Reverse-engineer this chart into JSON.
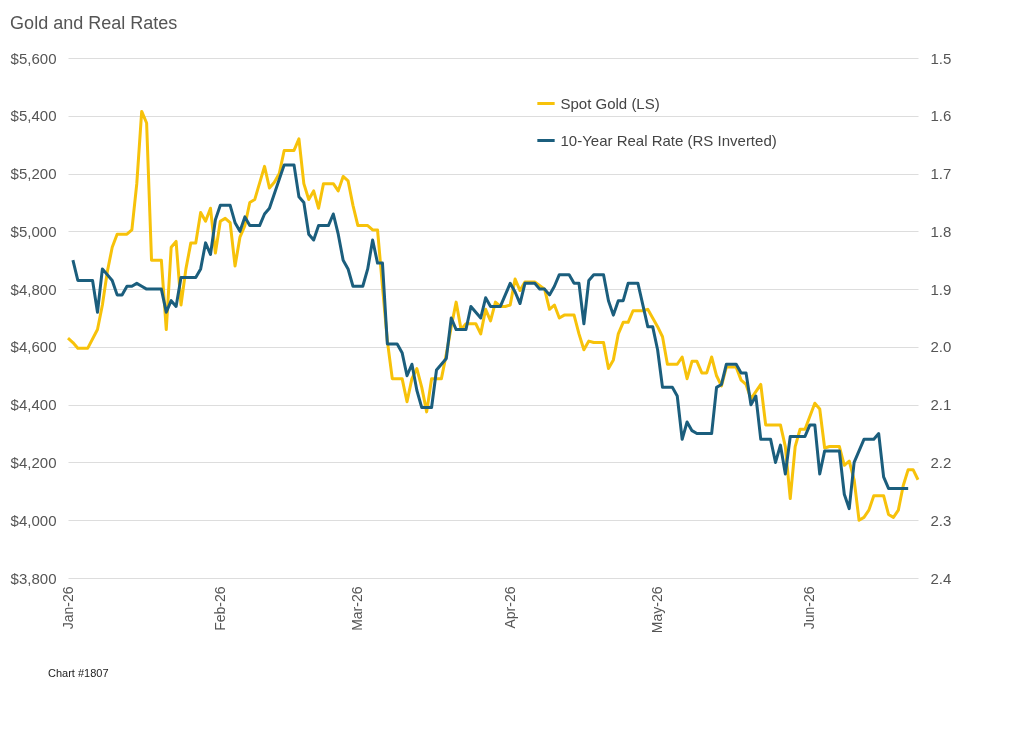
{
  "chart_data": {
    "type": "line",
    "title": "Gold and Real Rates",
    "annotations": [
      "Chart #1807"
    ],
    "xlim": [
      "2026-01-01",
      "2026-06-23"
    ],
    "xticks": [
      {
        "value": "2026-01-01",
        "label": "Jan-26"
      },
      {
        "value": "2026-02-01",
        "label": "Feb-26"
      },
      {
        "value": "2026-03-01",
        "label": "Mar-26"
      },
      {
        "value": "2026-04-01",
        "label": "Apr-26"
      },
      {
        "value": "2026-05-01",
        "label": "May-26"
      },
      {
        "value": "2026-06-01",
        "label": "Jun-26"
      }
    ],
    "ylim": [
      3800,
      5600
    ],
    "yticks": [
      {
        "value": 3800,
        "label": "$3,800"
      },
      {
        "value": 4000,
        "label": "$4,000"
      },
      {
        "value": 4200,
        "label": "$4,200"
      },
      {
        "value": 4400,
        "label": "$4,400"
      },
      {
        "value": 4600,
        "label": "$4,600"
      },
      {
        "value": 4800,
        "label": "$4,800"
      },
      {
        "value": 5000,
        "label": "$5,000"
      },
      {
        "value": 5200,
        "label": "$5,200"
      },
      {
        "value": 5400,
        "label": "$5,400"
      },
      {
        "value": 5600,
        "label": "$5,600"
      }
    ],
    "y2lim": [
      2.4,
      1.5
    ],
    "y2ticks": [
      1.5,
      1.6,
      1.7,
      1.8,
      1.9,
      {
        "value": 2.0,
        "label": "2.0"
      },
      2.1,
      2.2,
      2.3,
      2.4
    ],
    "grid": "y",
    "legend": "top right",
    "marker": "none",
    "line_style": "solid",
    "series": [
      {
        "name": "Spot Gold (LS)",
        "color": "#f7c20a",
        "x": [
          "2026-01-01",
          "2026-01-02",
          "2026-01-03",
          "2026-01-05",
          "2026-01-07",
          "2026-01-08",
          "2026-01-09",
          "2026-01-10",
          "2026-01-11",
          "2026-01-13",
          "2026-01-14",
          "2026-01-15",
          "2026-01-16",
          "2026-01-17",
          "2026-01-18",
          "2026-01-20",
          "2026-01-21",
          "2026-01-22",
          "2026-01-23",
          "2026-01-24",
          "2026-01-25",
          "2026-01-26",
          "2026-01-27",
          "2026-01-28",
          "2026-01-29",
          "2026-01-30",
          "2026-01-31",
          "2026-02-01",
          "2026-02-02",
          "2026-02-03",
          "2026-02-04",
          "2026-02-05",
          "2026-02-06",
          "2026-02-07",
          "2026-02-08",
          "2026-02-10",
          "2026-02-11",
          "2026-02-12",
          "2026-02-13",
          "2026-02-14",
          "2026-02-16",
          "2026-02-17",
          "2026-02-18",
          "2026-02-19",
          "2026-02-20",
          "2026-02-21",
          "2026-02-22",
          "2026-02-24",
          "2026-02-25",
          "2026-02-26",
          "2026-02-27",
          "2026-02-28",
          "2026-03-01",
          "2026-03-03",
          "2026-03-04",
          "2026-03-05",
          "2026-03-06",
          "2026-03-07",
          "2026-03-08",
          "2026-03-10",
          "2026-03-11",
          "2026-03-12",
          "2026-03-13",
          "2026-03-14",
          "2026-03-15",
          "2026-03-16",
          "2026-03-18",
          "2026-03-19",
          "2026-03-20",
          "2026-03-21",
          "2026-03-22",
          "2026-03-23",
          "2026-03-25",
          "2026-03-26",
          "2026-03-27",
          "2026-03-28",
          "2026-03-29",
          "2026-03-30",
          "2026-03-31",
          "2026-04-01",
          "2026-04-02",
          "2026-04-03",
          "2026-04-04",
          "2026-04-06",
          "2026-04-08",
          "2026-04-09",
          "2026-04-10",
          "2026-04-11",
          "2026-04-12",
          "2026-04-13",
          "2026-04-14",
          "2026-04-15",
          "2026-04-16",
          "2026-04-17",
          "2026-04-18",
          "2026-04-20",
          "2026-04-21",
          "2026-04-22",
          "2026-04-23",
          "2026-04-24",
          "2026-04-25",
          "2026-04-26",
          "2026-04-28",
          "2026-04-29",
          "2026-04-30",
          "2026-05-01",
          "2026-05-02",
          "2026-05-03",
          "2026-05-05",
          "2026-05-06",
          "2026-05-07",
          "2026-05-08",
          "2026-05-09",
          "2026-05-10",
          "2026-05-11",
          "2026-05-12",
          "2026-05-13",
          "2026-05-14",
          "2026-05-15",
          "2026-05-17",
          "2026-05-18",
          "2026-05-19",
          "2026-05-20",
          "2026-05-22",
          "2026-05-23",
          "2026-05-26",
          "2026-05-27",
          "2026-05-28",
          "2026-05-29",
          "2026-05-30",
          "2026-05-31",
          "2026-06-02",
          "2026-06-03",
          "2026-06-04",
          "2026-06-05",
          "2026-06-07",
          "2026-06-08",
          "2026-06-09",
          "2026-06-10",
          "2026-06-11",
          "2026-06-12",
          "2026-06-13",
          "2026-06-14",
          "2026-06-16",
          "2026-06-17",
          "2026-06-18",
          "2026-06-19",
          "2026-06-20",
          "2026-06-21",
          "2026-06-22",
          "2026-06-23"
        ],
        "values": [
          4630,
          4615,
          4595,
          4595,
          4660,
          4745,
          4860,
          4945,
          4990,
          4990,
          5005,
          5165,
          5415,
          5375,
          4900,
          4900,
          4660,
          4945,
          4965,
          4745,
          4870,
          4960,
          4960,
          5065,
          5035,
          5080,
          4925,
          5035,
          5045,
          5030,
          4880,
          4980,
          5020,
          5100,
          5110,
          5225,
          5150,
          5170,
          5200,
          5280,
          5280,
          5320,
          5165,
          5110,
          5140,
          5080,
          5165,
          5165,
          5140,
          5190,
          5175,
          5090,
          5020,
          5020,
          5005,
          5005,
          4810,
          4620,
          4490,
          4490,
          4410,
          4490,
          4525,
          4460,
          4375,
          4490,
          4490,
          4575,
          4670,
          4755,
          4660,
          4680,
          4680,
          4645,
          4730,
          4690,
          4755,
          4740,
          4740,
          4745,
          4835,
          4795,
          4825,
          4825,
          4800,
          4730,
          4745,
          4700,
          4710,
          4710,
          4710,
          4645,
          4590,
          4620,
          4615,
          4615,
          4525,
          4555,
          4645,
          4685,
          4685,
          4725,
          4725,
          4730,
          4700,
          4670,
          4635,
          4540,
          4540,
          4565,
          4490,
          4550,
          4550,
          4510,
          4510,
          4565,
          4500,
          4465,
          4530,
          4530,
          4485,
          4470,
          4420,
          4470,
          4330,
          4330,
          4255,
          4075,
          4255,
          4315,
          4315,
          4405,
          4385,
          4250,
          4255,
          4255,
          4190,
          4205,
          4140,
          4000,
          4010,
          4035,
          4085,
          4085,
          4020,
          4010,
          4035,
          4120,
          4175,
          4175,
          4140
        ]
      },
      {
        "name": "10-Year Real Rate (RS Inverted)",
        "color": "#1b5e7d",
        "axis": "y2",
        "x": [
          "2026-01-02",
          "2026-01-03",
          "2026-01-06",
          "2026-01-07",
          "2026-01-08",
          "2026-01-10",
          "2026-01-11",
          "2026-01-12",
          "2026-01-13",
          "2026-01-14",
          "2026-01-15",
          "2026-01-16",
          "2026-01-17",
          "2026-01-20",
          "2026-01-21",
          "2026-01-22",
          "2026-01-23",
          "2026-01-24",
          "2026-01-25",
          "2026-01-27",
          "2026-01-28",
          "2026-01-29",
          "2026-01-30",
          "2026-01-31",
          "2026-02-01",
          "2026-02-03",
          "2026-02-04",
          "2026-02-05",
          "2026-02-06",
          "2026-02-07",
          "2026-02-09",
          "2026-02-10",
          "2026-02-11",
          "2026-02-12",
          "2026-02-14",
          "2026-02-16",
          "2026-02-17",
          "2026-02-18",
          "2026-02-19",
          "2026-02-20",
          "2026-02-21",
          "2026-02-23",
          "2026-02-24",
          "2026-02-25",
          "2026-02-26",
          "2026-02-27",
          "2026-02-28",
          "2026-03-02",
          "2026-03-03",
          "2026-03-04",
          "2026-03-05",
          "2026-03-06",
          "2026-03-07",
          "2026-03-09",
          "2026-03-10",
          "2026-03-11",
          "2026-03-12",
          "2026-03-13",
          "2026-03-14",
          "2026-03-16",
          "2026-03-17",
          "2026-03-19",
          "2026-03-20",
          "2026-03-21",
          "2026-03-23",
          "2026-03-24",
          "2026-03-26",
          "2026-03-27",
          "2026-03-28",
          "2026-03-30",
          "2026-04-01",
          "2026-04-02",
          "2026-04-03",
          "2026-04-04",
          "2026-04-06",
          "2026-04-07",
          "2026-04-08",
          "2026-04-09",
          "2026-04-10",
          "2026-04-11",
          "2026-04-13",
          "2026-04-14",
          "2026-04-15",
          "2026-04-16",
          "2026-04-17",
          "2026-04-18",
          "2026-04-20",
          "2026-04-21",
          "2026-04-22",
          "2026-04-23",
          "2026-04-24",
          "2026-04-25",
          "2026-04-27",
          "2026-04-29",
          "2026-04-30",
          "2026-05-01",
          "2026-05-02",
          "2026-05-04",
          "2026-05-05",
          "2026-05-06",
          "2026-05-07",
          "2026-05-08",
          "2026-05-09",
          "2026-05-12",
          "2026-05-13",
          "2026-05-14",
          "2026-05-15",
          "2026-05-17",
          "2026-05-18",
          "2026-05-19",
          "2026-05-20",
          "2026-05-21",
          "2026-05-22",
          "2026-05-24",
          "2026-05-25",
          "2026-05-26",
          "2026-05-27",
          "2026-05-28",
          "2026-05-31",
          "2026-06-01",
          "2026-06-02",
          "2026-06-03",
          "2026-06-04",
          "2026-06-07",
          "2026-06-08",
          "2026-06-09",
          "2026-06-10",
          "2026-06-12",
          "2026-06-14",
          "2026-06-15",
          "2026-06-16",
          "2026-06-17",
          "2026-06-21"
        ],
        "values": [
          1.85,
          1.885,
          1.885,
          1.94,
          1.865,
          1.885,
          1.91,
          1.91,
          1.895,
          1.895,
          1.89,
          1.895,
          1.9,
          1.9,
          1.94,
          1.92,
          1.93,
          1.88,
          1.88,
          1.88,
          1.865,
          1.82,
          1.84,
          1.78,
          1.755,
          1.755,
          1.785,
          1.8,
          1.775,
          1.79,
          1.79,
          1.77,
          1.76,
          1.735,
          1.685,
          1.685,
          1.74,
          1.75,
          1.805,
          1.815,
          1.79,
          1.79,
          1.77,
          1.805,
          1.85,
          1.865,
          1.895,
          1.895,
          1.865,
          1.815,
          1.855,
          1.855,
          1.995,
          1.995,
          2.01,
          2.05,
          2.03,
          2.075,
          2.105,
          2.105,
          2.04,
          2.02,
          1.95,
          1.97,
          1.97,
          1.93,
          1.95,
          1.915,
          1.93,
          1.93,
          1.89,
          1.905,
          1.925,
          1.89,
          1.89,
          1.9,
          1.9,
          1.91,
          1.895,
          1.875,
          1.875,
          1.89,
          1.89,
          1.96,
          1.885,
          1.875,
          1.875,
          1.92,
          1.945,
          1.92,
          1.92,
          1.89,
          1.89,
          1.965,
          1.965,
          2.005,
          2.07,
          2.07,
          2.085,
          2.16,
          2.13,
          2.145,
          2.15,
          2.15,
          2.07,
          2.065,
          2.03,
          2.03,
          2.045,
          2.045,
          2.1,
          2.085,
          2.16,
          2.16,
          2.2,
          2.17,
          2.22,
          2.155,
          2.155,
          2.135,
          2.135,
          2.22,
          2.18,
          2.18,
          2.255,
          2.28,
          2.2,
          2.16,
          2.16,
          2.15,
          2.225,
          2.245,
          2.245
        ]
      }
    ]
  }
}
